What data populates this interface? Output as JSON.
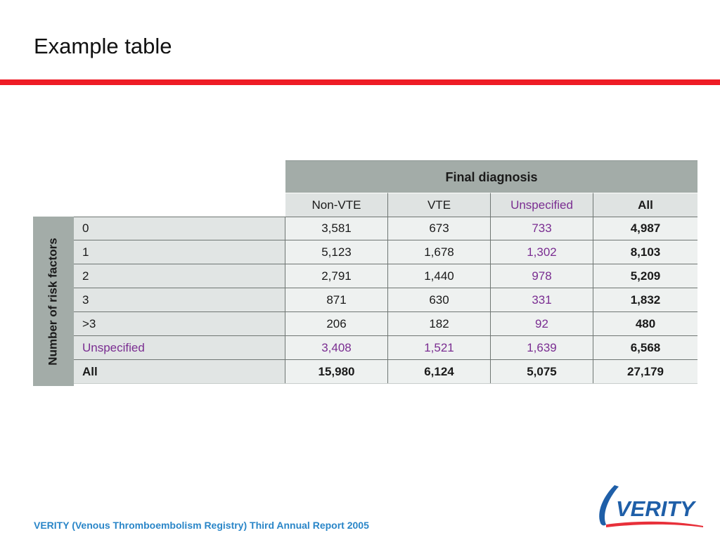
{
  "slide": {
    "title": "Example table"
  },
  "table": {
    "group_header": "Final diagnosis",
    "row_group_label": "Number of risk factors",
    "columns": [
      {
        "label": "Non-VTE",
        "style": "normal"
      },
      {
        "label": "VTE",
        "style": "normal"
      },
      {
        "label": "Unspecified",
        "style": "purple"
      },
      {
        "label": "All",
        "style": "bold"
      }
    ],
    "rows": [
      {
        "label": "0",
        "label_style": "normal",
        "cells": [
          "3,581",
          "673",
          "733",
          "4,987"
        ],
        "styles": [
          "normal",
          "normal",
          "purple",
          "bold"
        ]
      },
      {
        "label": "1",
        "label_style": "normal",
        "cells": [
          "5,123",
          "1,678",
          "1,302",
          "8,103"
        ],
        "styles": [
          "normal",
          "normal",
          "purple",
          "bold"
        ]
      },
      {
        "label": "2",
        "label_style": "normal",
        "cells": [
          "2,791",
          "1,440",
          "978",
          "5,209"
        ],
        "styles": [
          "normal",
          "normal",
          "purple",
          "bold"
        ]
      },
      {
        "label": "3",
        "label_style": "normal",
        "cells": [
          "871",
          "630",
          "331",
          "1,832"
        ],
        "styles": [
          "normal",
          "normal",
          "purple",
          "bold"
        ]
      },
      {
        "label": ">3",
        "label_style": "normal",
        "cells": [
          "206",
          "182",
          "92",
          "480"
        ],
        "styles": [
          "normal",
          "normal",
          "purple",
          "bold"
        ]
      },
      {
        "label": "Unspecified",
        "label_style": "purple",
        "cells": [
          "3,408",
          "1,521",
          "1,639",
          "6,568"
        ],
        "styles": [
          "purple",
          "purple",
          "purple",
          "bold"
        ]
      },
      {
        "label": "All",
        "label_style": "bold",
        "cells": [
          "15,980",
          "6,124",
          "5,075",
          "27,179"
        ],
        "styles": [
          "bold",
          "bold",
          "bold",
          "bold"
        ]
      }
    ]
  },
  "footer": {
    "text": "VERITY (Venous Thromboembolism Registry) Third Annual Report 2005"
  },
  "logo": {
    "text": "VERITY",
    "icon": "verity-logo"
  },
  "colors": {
    "accent_rule": "#ee1c25",
    "purple_text": "#7a2d91",
    "footer_blue": "#2a86c8",
    "logo_blue": "#1f5fa8",
    "logo_red": "#e8303a"
  }
}
